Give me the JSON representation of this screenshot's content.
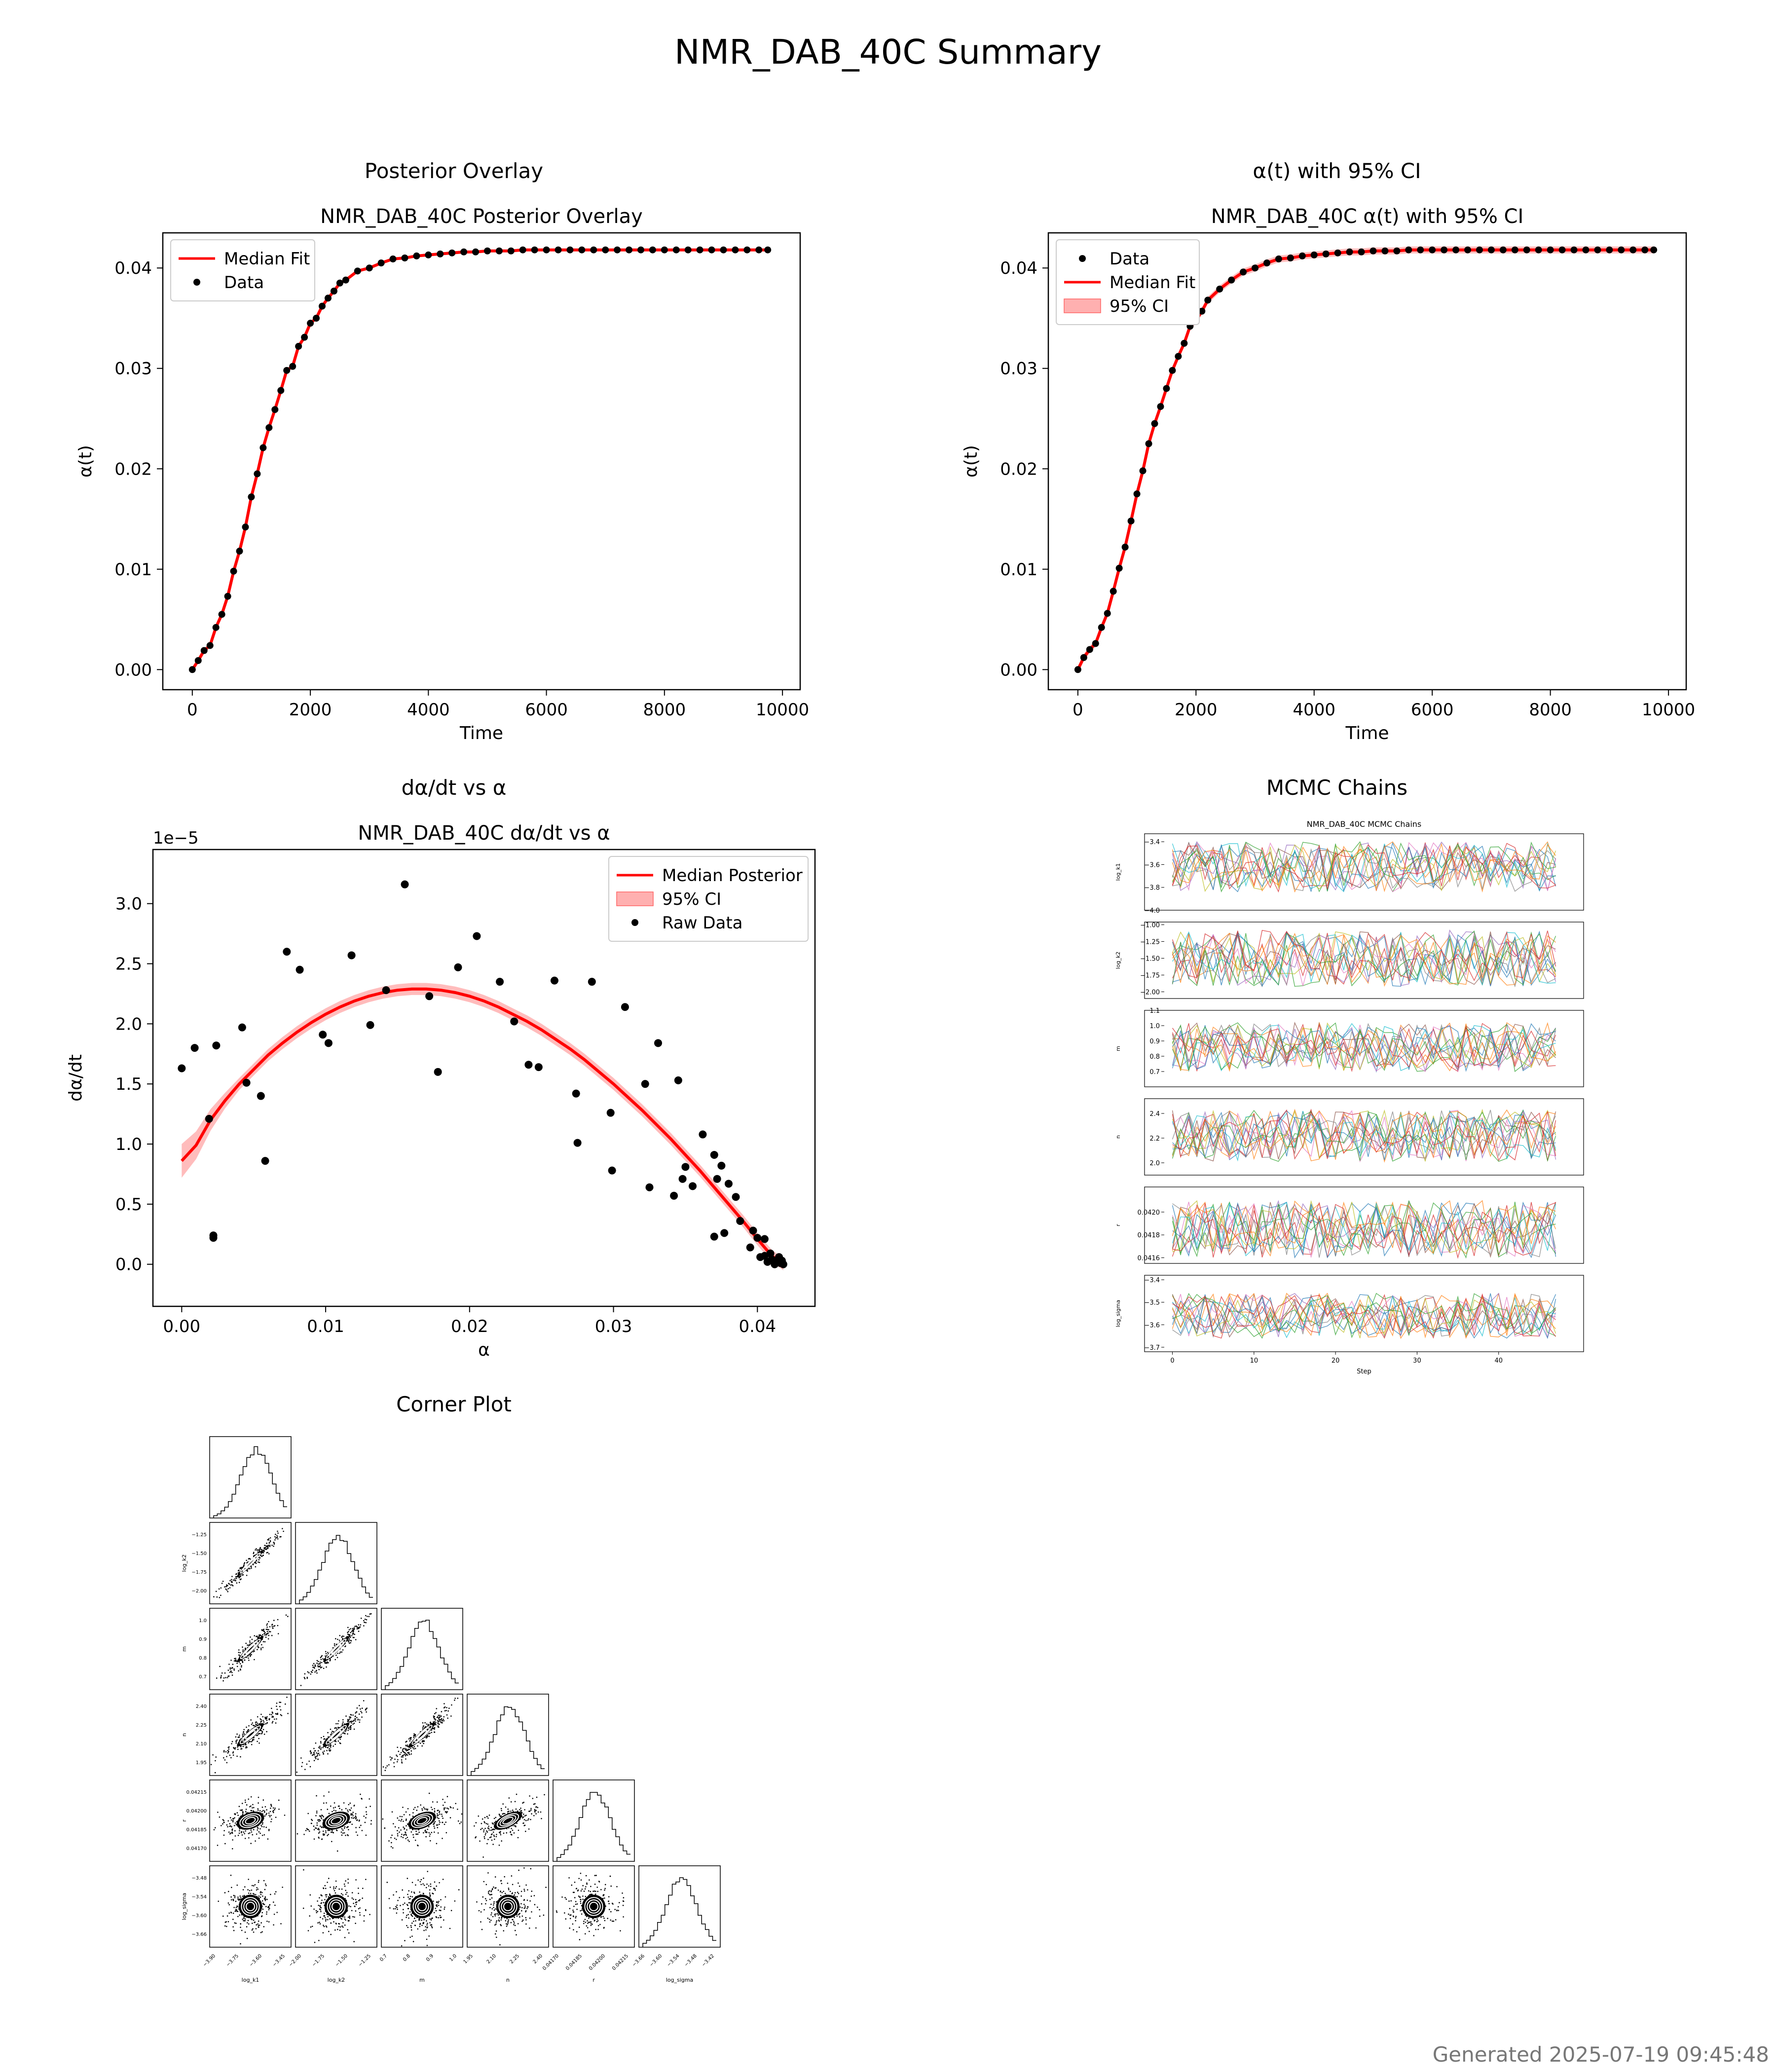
{
  "page": {
    "title": "NMR_DAB_40C Summary",
    "footer": "Generated 2025-07-19 09:45:48"
  },
  "panels": {
    "overlay_header": "Posterior Overlay",
    "ci_header": "α(t) with 95% CI",
    "rate_header": "dα/dt vs α",
    "chains_header": "MCMC Chains",
    "corner_header": "Corner Plot"
  },
  "chart_data": [
    {
      "id": "overlay",
      "type": "line",
      "title": "NMR_DAB_40C Posterior Overlay",
      "xlabel": "Time",
      "ylabel": "α(t)",
      "xlim": [
        -500,
        10300
      ],
      "ylim": [
        -0.002,
        0.0435
      ],
      "xticks": [
        0,
        2000,
        4000,
        6000,
        8000,
        10000
      ],
      "yticks": [
        0.0,
        0.01,
        0.02,
        0.03,
        0.04
      ],
      "xtick_labels": [
        "0",
        "2000",
        "4000",
        "6000",
        "8000",
        "10000"
      ],
      "ytick_labels": [
        "0.00",
        "0.01",
        "0.02",
        "0.03",
        "0.04"
      ],
      "legend_position": "upper-left",
      "series": [
        {
          "name": "Median Fit",
          "kind": "line",
          "color": "#ff0000"
        },
        {
          "name": "Data",
          "kind": "points",
          "color": "#000000"
        }
      ],
      "x": [
        0,
        100,
        200,
        300,
        400,
        500,
        600,
        700,
        800,
        900,
        1000,
        1100,
        1200,
        1300,
        1400,
        1500,
        1600,
        1700,
        1800,
        1900,
        2000,
        2100,
        2200,
        2300,
        2400,
        2500,
        2600,
        2800,
        3000,
        3200,
        3400,
        3600,
        3800,
        4000,
        4200,
        4400,
        4600,
        4800,
        5000,
        5200,
        5400,
        5600,
        5800,
        6000,
        6200,
        6400,
        6600,
        6800,
        7000,
        7200,
        7400,
        7600,
        7800,
        8000,
        8200,
        8400,
        8600,
        8800,
        9000,
        9200,
        9400,
        9600,
        9750
      ],
      "y": [
        0.0,
        0.0009,
        0.0019,
        0.0024,
        0.0042,
        0.0055,
        0.0073,
        0.0098,
        0.0118,
        0.0142,
        0.0172,
        0.0195,
        0.0221,
        0.0241,
        0.0259,
        0.0278,
        0.0298,
        0.0302,
        0.0322,
        0.0331,
        0.0345,
        0.035,
        0.0362,
        0.037,
        0.0377,
        0.0385,
        0.0388,
        0.0397,
        0.04,
        0.0405,
        0.0409,
        0.041,
        0.0412,
        0.0413,
        0.0414,
        0.0415,
        0.0416,
        0.0416,
        0.0417,
        0.0417,
        0.0417,
        0.0418,
        0.0418,
        0.0418,
        0.0418,
        0.0418,
        0.0418,
        0.0418,
        0.0418,
        0.0418,
        0.0418,
        0.0418,
        0.0418,
        0.0418,
        0.0418,
        0.0418,
        0.0418,
        0.0418,
        0.0418,
        0.0418,
        0.0418,
        0.0418,
        0.0418
      ]
    },
    {
      "id": "ci",
      "type": "line",
      "title": "NMR_DAB_40C α(t) with 95% CI",
      "xlabel": "Time",
      "ylabel": "α(t)",
      "xlim": [
        -500,
        10300
      ],
      "ylim": [
        -0.002,
        0.0435
      ],
      "xticks": [
        0,
        2000,
        4000,
        6000,
        8000,
        10000
      ],
      "yticks": [
        0.0,
        0.01,
        0.02,
        0.03,
        0.04
      ],
      "xtick_labels": [
        "0",
        "2000",
        "4000",
        "6000",
        "8000",
        "10000"
      ],
      "ytick_labels": [
        "0.00",
        "0.01",
        "0.02",
        "0.03",
        "0.04"
      ],
      "legend_position": "upper-left",
      "series": [
        {
          "name": "Data",
          "kind": "points",
          "color": "#000000"
        },
        {
          "name": "Median Fit",
          "kind": "line",
          "color": "#ff0000"
        },
        {
          "name": "95% CI",
          "kind": "band",
          "color": "#ffb0b0"
        }
      ],
      "x": [
        0,
        100,
        200,
        300,
        400,
        500,
        600,
        700,
        800,
        900,
        1000,
        1100,
        1200,
        1300,
        1400,
        1500,
        1600,
        1700,
        1800,
        1900,
        2000,
        2100,
        2200,
        2400,
        2600,
        2800,
        3000,
        3200,
        3400,
        3600,
        3800,
        4000,
        4200,
        4400,
        4600,
        4800,
        5000,
        5200,
        5400,
        5600,
        5800,
        6000,
        6200,
        6400,
        6600,
        6800,
        7000,
        7200,
        7400,
        7600,
        7800,
        8000,
        8200,
        8400,
        8600,
        8800,
        9000,
        9200,
        9400,
        9600,
        9750
      ],
      "y": [
        0.0,
        0.0012,
        0.002,
        0.0026,
        0.0042,
        0.0056,
        0.0078,
        0.0101,
        0.0122,
        0.0148,
        0.0175,
        0.0198,
        0.0225,
        0.0245,
        0.0262,
        0.028,
        0.0298,
        0.0312,
        0.0325,
        0.0342,
        0.0348,
        0.0357,
        0.0368,
        0.0379,
        0.0388,
        0.0396,
        0.04,
        0.0405,
        0.0409,
        0.041,
        0.0412,
        0.0413,
        0.0414,
        0.0415,
        0.0416,
        0.0416,
        0.0417,
        0.0417,
        0.0417,
        0.0418,
        0.0418,
        0.0418,
        0.0418,
        0.0418,
        0.0418,
        0.0418,
        0.0418,
        0.0418,
        0.0418,
        0.0418,
        0.0418,
        0.0418,
        0.0418,
        0.0418,
        0.0418,
        0.0418,
        0.0418,
        0.0418,
        0.0418,
        0.0418,
        0.0418
      ]
    },
    {
      "id": "rate",
      "type": "scatter",
      "title": "NMR_DAB_40C dα/dt vs α",
      "xlabel": "α",
      "ylabel": "dα/dt",
      "offset_text": "1e−5",
      "xlim": [
        -0.002,
        0.044
      ],
      "ylim": [
        -0.35,
        3.45
      ],
      "xticks": [
        0.0,
        0.01,
        0.02,
        0.03,
        0.04
      ],
      "yticks": [
        0.0,
        0.5,
        1.0,
        1.5,
        2.0,
        2.5,
        3.0
      ],
      "xtick_labels": [
        "0.00",
        "0.01",
        "0.02",
        "0.03",
        "0.04"
      ],
      "ytick_labels": [
        "0.0",
        "0.5",
        "1.0",
        "1.5",
        "2.0",
        "2.5",
        "3.0"
      ],
      "legend_position": "upper-right",
      "series": [
        {
          "name": "Median Posterior",
          "kind": "line",
          "color": "#ff0000"
        },
        {
          "name": "95% CI",
          "kind": "band",
          "color": "#ffb0b0"
        },
        {
          "name": "Raw Data",
          "kind": "points",
          "color": "#000000"
        }
      ],
      "curve_x": [
        0.0,
        0.001,
        0.002,
        0.003,
        0.004,
        0.005,
        0.006,
        0.007,
        0.008,
        0.009,
        0.01,
        0.011,
        0.012,
        0.013,
        0.014,
        0.015,
        0.016,
        0.017,
        0.018,
        0.019,
        0.02,
        0.021,
        0.022,
        0.023,
        0.024,
        0.025,
        0.026,
        0.027,
        0.028,
        0.029,
        0.03,
        0.031,
        0.032,
        0.033,
        0.034,
        0.035,
        0.036,
        0.037,
        0.038,
        0.039,
        0.04,
        0.041,
        0.0418
      ],
      "curve_y": [
        0.86,
        0.99,
        1.2,
        1.36,
        1.5,
        1.62,
        1.74,
        1.84,
        1.93,
        2.01,
        2.08,
        2.14,
        2.19,
        2.23,
        2.26,
        2.28,
        2.29,
        2.29,
        2.28,
        2.26,
        2.23,
        2.19,
        2.14,
        2.08,
        2.02,
        1.95,
        1.87,
        1.79,
        1.7,
        1.6,
        1.5,
        1.39,
        1.28,
        1.16,
        1.04,
        0.91,
        0.78,
        0.64,
        0.5,
        0.36,
        0.21,
        0.07,
        0.0
      ],
      "points_x": [
        0.0,
        0.0009,
        0.0019,
        0.0022,
        0.0022,
        0.0024,
        0.0042,
        0.0045,
        0.0055,
        0.0058,
        0.0073,
        0.0082,
        0.0098,
        0.0102,
        0.0118,
        0.0131,
        0.0142,
        0.0155,
        0.0172,
        0.0178,
        0.0192,
        0.0205,
        0.0221,
        0.0231,
        0.0241,
        0.0248,
        0.0259,
        0.0274,
        0.0275,
        0.0285,
        0.0298,
        0.0299,
        0.0308,
        0.0322,
        0.0325,
        0.0331,
        0.0342,
        0.0345,
        0.0348,
        0.035,
        0.0355,
        0.0362,
        0.037,
        0.037,
        0.0372,
        0.0375,
        0.0377,
        0.038,
        0.0385,
        0.0388,
        0.0395,
        0.0397,
        0.04,
        0.0402,
        0.0405,
        0.0405,
        0.0407,
        0.0409,
        0.041,
        0.0412,
        0.0413,
        0.0414,
        0.0415,
        0.0416,
        0.0417,
        0.0418
      ],
      "points_y": [
        1.63,
        1.8,
        1.21,
        0.24,
        0.22,
        1.82,
        1.97,
        1.51,
        1.4,
        0.86,
        2.6,
        2.45,
        1.91,
        1.84,
        2.57,
        1.99,
        2.28,
        3.16,
        2.23,
        1.6,
        2.47,
        2.73,
        2.35,
        2.02,
        1.66,
        1.64,
        2.36,
        1.42,
        1.01,
        2.35,
        1.26,
        0.78,
        2.14,
        1.5,
        0.64,
        1.84,
        0.57,
        1.53,
        0.71,
        0.81,
        0.65,
        1.08,
        0.91,
        0.23,
        0.71,
        0.82,
        0.26,
        0.67,
        0.56,
        0.36,
        0.14,
        0.28,
        0.22,
        0.06,
        0.07,
        0.21,
        0.02,
        0.09,
        0.04,
        0.0,
        0.02,
        0.03,
        0.06,
        0.01,
        0.03,
        0.0
      ]
    },
    {
      "id": "chains",
      "type": "line",
      "title": "NMR_DAB_40C MCMC Chains",
      "xlabel": "Step",
      "xlim": [
        -1,
        48
      ],
      "xticks": [
        0,
        10,
        20,
        30,
        40
      ],
      "xtick_labels": [
        "0",
        "10",
        "20",
        "30",
        "40"
      ],
      "panels": [
        {
          "param": "log_k1",
          "ylim": [
            -4.0,
            -3.33
          ],
          "yticks": [
            -4.0,
            -3.8,
            -3.6,
            -3.4
          ],
          "ytick_labels": [
            "−4.0",
            "−3.8",
            "−3.6",
            "−3.4"
          ],
          "center": -3.62,
          "spread": 0.22
        },
        {
          "param": "log_k2",
          "ylim": [
            -2.1,
            -0.96
          ],
          "yticks": [
            -2.0,
            -1.75,
            -1.5,
            -1.25,
            -1.0
          ],
          "ytick_labels": [
            "−2.00",
            "−1.75",
            "−1.50",
            "−1.25",
            "−1.00"
          ],
          "center": -1.5,
          "spread": 0.42
        },
        {
          "param": "m",
          "ylim": [
            0.6,
            1.1
          ],
          "yticks": [
            0.7,
            0.8,
            0.9,
            1.0,
            1.1
          ],
          "ytick_labels": [
            "0.7",
            "0.8",
            "0.9",
            "1.0",
            "1.1"
          ],
          "center": 0.86,
          "spread": 0.16
        },
        {
          "param": "n",
          "ylim": [
            1.9,
            2.52
          ],
          "yticks": [
            2.0,
            2.2,
            2.4
          ],
          "ytick_labels": [
            "2.0",
            "2.2",
            "2.4"
          ],
          "center": 2.22,
          "spread": 0.21
        },
        {
          "param": "r",
          "ylim": [
            0.04155,
            0.04222
          ],
          "yticks": [
            0.0416,
            0.0418,
            0.042
          ],
          "ytick_labels": [
            "0.0416",
            "0.0418",
            "0.0420"
          ],
          "center": 0.04185,
          "spread": 0.00025
        },
        {
          "param": "log_sigma",
          "ylim": [
            -3.72,
            -3.38
          ],
          "yticks": [
            -3.7,
            -3.6,
            -3.5,
            -3.4
          ],
          "ytick_labels": [
            "−3.7",
            "−3.6",
            "−3.5",
            "−3.4"
          ],
          "center": -3.56,
          "spread": 0.1
        }
      ]
    },
    {
      "id": "corner",
      "type": "scatter",
      "params": [
        "log_k1",
        "log_k2",
        "m",
        "n",
        "r",
        "log_sigma"
      ],
      "ytick_labels": [
        [],
        [
          "−1.25",
          "−1.50",
          "−1.75",
          "−2.00"
        ],
        [
          "1.0",
          "0.9",
          "0.8",
          "0.7"
        ],
        [
          "2.40",
          "2.25",
          "2.10",
          "1.95"
        ],
        [
          "0.04215",
          "0.04200",
          "0.04185",
          "0.04170"
        ],
        [
          "−3.48",
          "−3.54",
          "−3.60",
          "−3.66"
        ]
      ],
      "xtick_labels": [
        [
          "−3.90",
          "−3.75",
          "−3.60",
          "−3.45"
        ],
        [
          "−2.00",
          "−1.75",
          "−1.50",
          "−1.25"
        ],
        [
          "0.7",
          "0.8",
          "0.9",
          "1.0"
        ],
        [
          "1.95",
          "2.10",
          "2.25",
          "2.40"
        ],
        [
          "0.04170",
          "0.04185",
          "0.04200",
          "0.04215"
        ],
        [
          "−3.66",
          "−3.60",
          "−3.54",
          "−3.48",
          "−3.42"
        ]
      ]
    }
  ]
}
